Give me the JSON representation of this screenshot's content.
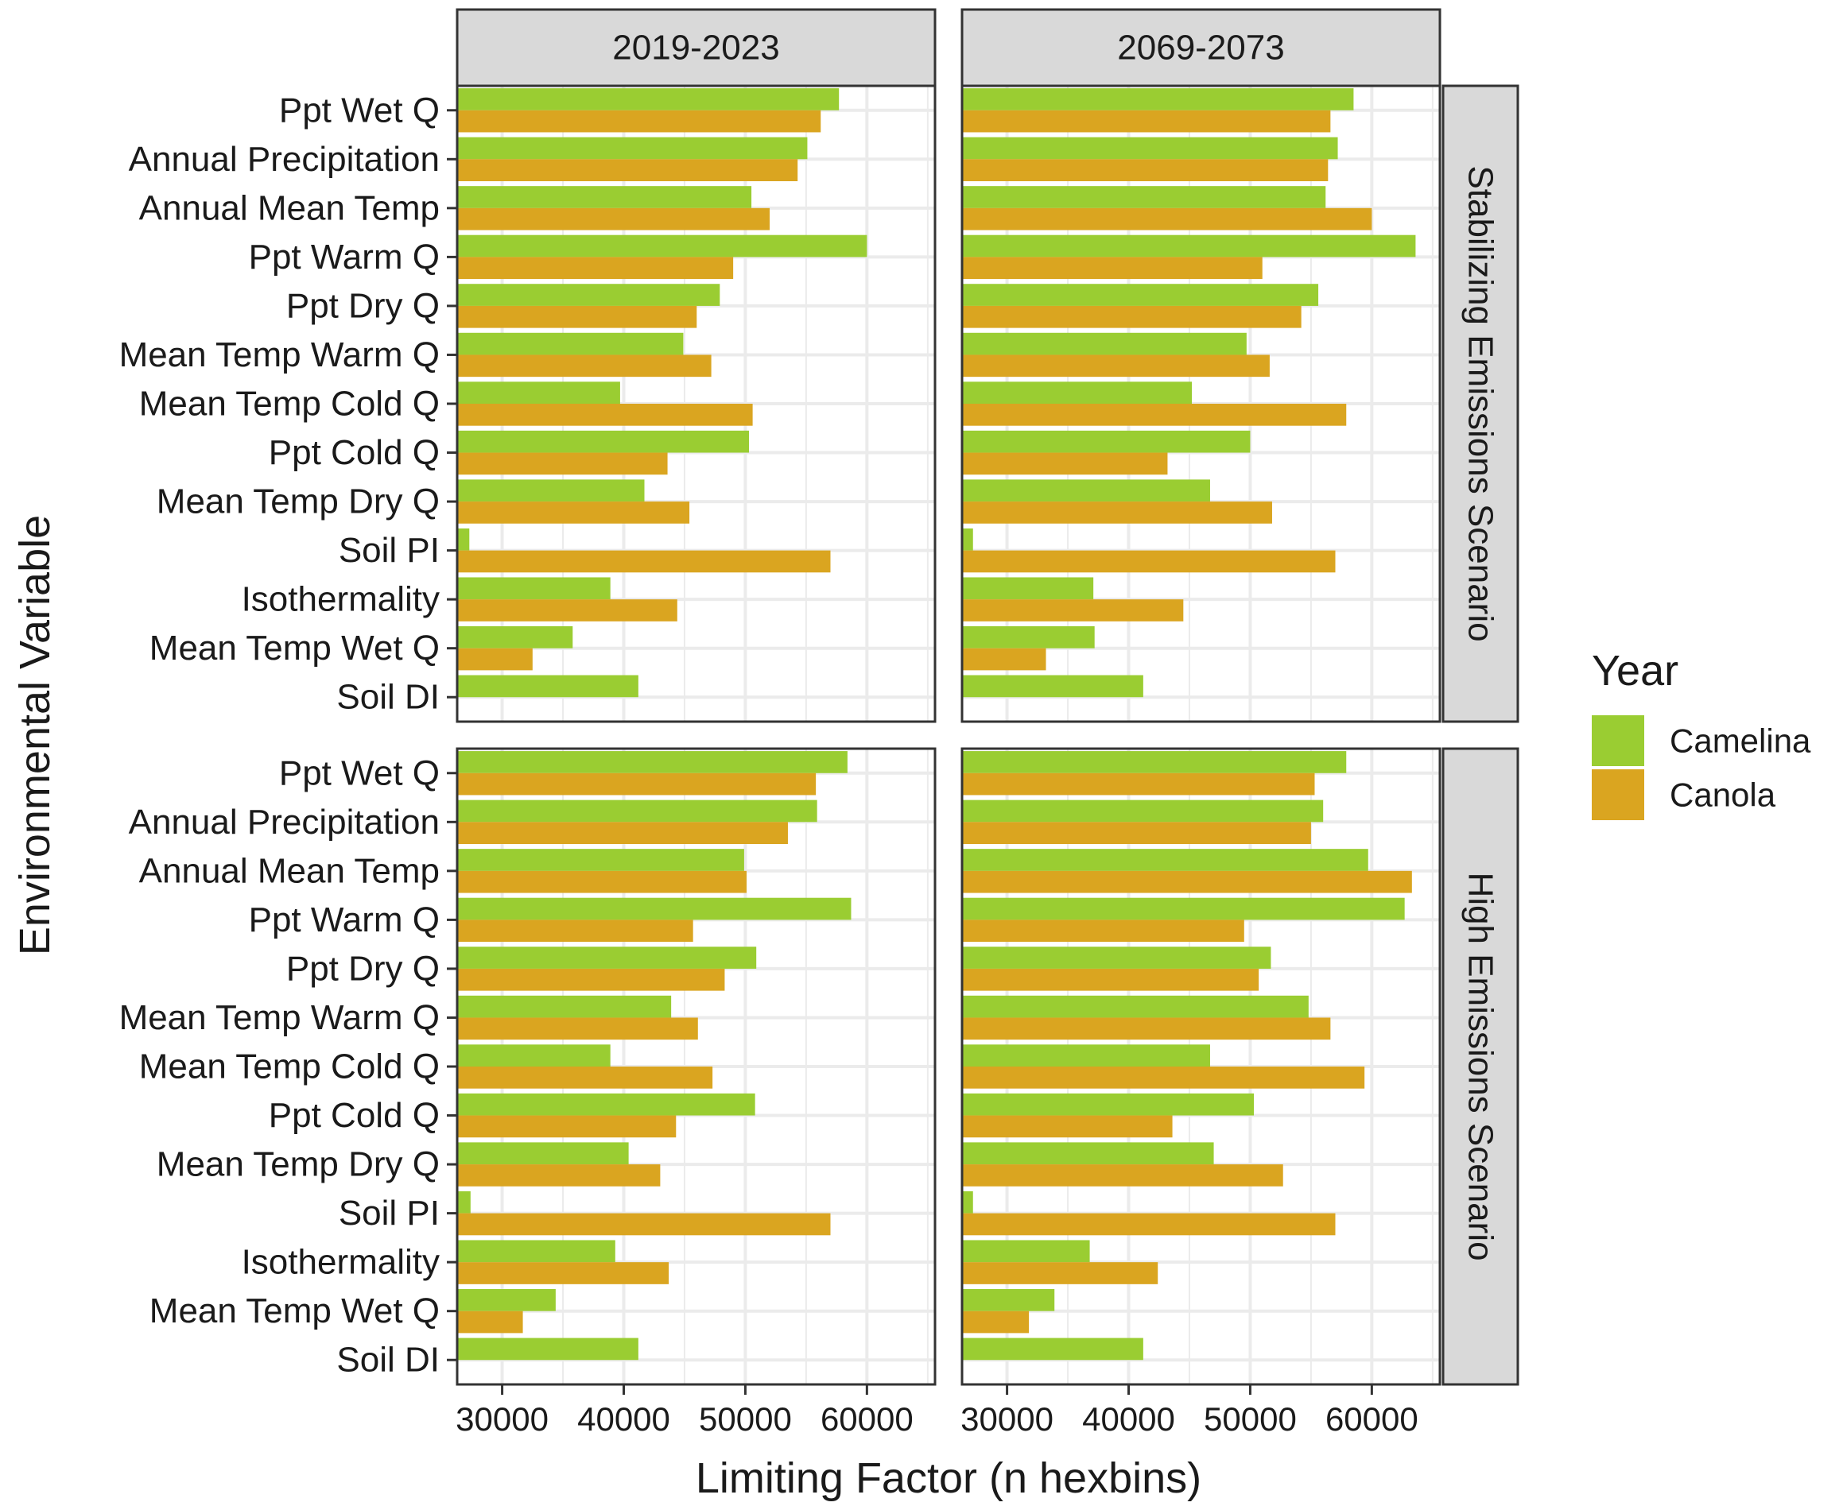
{
  "chart_data": {
    "type": "bar",
    "orientation": "horizontal",
    "xlabel": "Limiting Factor (n hexbins)",
    "ylabel": "Environmental Variable",
    "xlim": [
      26300,
      65600
    ],
    "x_ticks": [
      30000,
      40000,
      50000,
      60000
    ],
    "x_tick_labels": [
      "30000",
      "40000",
      "50000",
      "60000"
    ],
    "grid": true,
    "categories": [
      "Ppt Wet Q",
      "Annual Precipitation",
      "Annual Mean Temp",
      "Ppt Warm Q",
      "Ppt Dry Q",
      "Mean Temp Warm Q",
      "Mean Temp Cold Q",
      "Ppt Cold Q",
      "Mean Temp Dry Q",
      "Soil PI",
      "Isothermality",
      "Mean Temp Wet Q",
      "Soil DI"
    ],
    "column_facets": [
      "2019-2023",
      "2069-2073"
    ],
    "row_facets": [
      "Stabilizing Emissions Scenario",
      "High Emissions Scenario"
    ],
    "legend": {
      "title": "Year",
      "position": "right",
      "entries": [
        {
          "label": "Camelina",
          "color": "#9ACD32"
        },
        {
          "label": "Canola",
          "color": "#DAA520"
        }
      ]
    },
    "panels": [
      {
        "column": "2019-2023",
        "row": "Stabilizing Emissions Scenario",
        "series": [
          {
            "name": "Camelina",
            "values": [
              57700,
              55100,
              50500,
              60000,
              47900,
              44900,
              39700,
              50300,
              41700,
              27300,
              38900,
              35800,
              41200
            ]
          },
          {
            "name": "Canola",
            "values": [
              56200,
              54300,
              52000,
              49000,
              46000,
              47200,
              50600,
              43600,
              45400,
              57000,
              44400,
              32500,
              null
            ]
          }
        ]
      },
      {
        "column": "2069-2073",
        "row": "Stabilizing Emissions Scenario",
        "series": [
          {
            "name": "Camelina",
            "values": [
              58500,
              57200,
              56200,
              63600,
              55600,
              49700,
              45200,
              50000,
              46700,
              27200,
              37100,
              37200,
              41200
            ]
          },
          {
            "name": "Canola",
            "values": [
              56600,
              56400,
              60000,
              51000,
              54200,
              51600,
              57900,
              43200,
              51800,
              57000,
              44500,
              33200,
              null
            ]
          }
        ]
      },
      {
        "column": "2019-2023",
        "row": "High Emissions Scenario",
        "series": [
          {
            "name": "Camelina",
            "values": [
              58400,
              55900,
              49900,
              58700,
              50900,
              43900,
              38900,
              50800,
              40400,
              27400,
              39300,
              34400,
              41200
            ]
          },
          {
            "name": "Canola",
            "values": [
              55800,
              53500,
              50100,
              45700,
              48300,
              46100,
              47300,
              44300,
              43000,
              57000,
              43700,
              31700,
              null
            ]
          }
        ]
      },
      {
        "column": "2069-2073",
        "row": "High Emissions Scenario",
        "series": [
          {
            "name": "Camelina",
            "values": [
              57900,
              56000,
              59700,
              62700,
              51700,
              54800,
              46700,
              50300,
              47000,
              27200,
              36800,
              33900,
              41200
            ]
          },
          {
            "name": "Canola",
            "values": [
              55300,
              55000,
              63300,
              49500,
              50700,
              56600,
              59400,
              43600,
              52700,
              57000,
              42400,
              31800,
              null
            ]
          }
        ]
      }
    ]
  }
}
